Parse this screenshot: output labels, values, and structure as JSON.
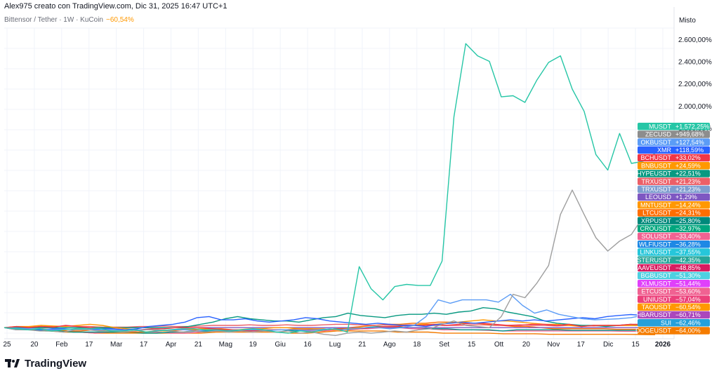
{
  "header": {
    "author_line": "Alex975 creato con TradingView.com, Dic 31, 2025 16:47 UTC+1",
    "symbol_line": "Bittensor / Tether · 1W · KuCoin",
    "symbol_change": "−60,54%"
  },
  "price_scale_mode": "Misto",
  "brand": "TradingView",
  "chart_data": {
    "type": "line",
    "title": "",
    "x_axis_labels": [
      "25",
      "20",
      "Feb",
      "17",
      "Mar",
      "17",
      "Apr",
      "21",
      "Mag",
      "19",
      "Giu",
      "16",
      "Lug",
      "21",
      "Ago",
      "18",
      "Set",
      "15",
      "Ott",
      "20",
      "Nov",
      "17",
      "Dic",
      "15",
      "2026"
    ],
    "x_range": [
      0,
      53
    ],
    "ylim": [
      -100,
      2700
    ],
    "y_ticks": [
      {
        "value": 2600,
        "label": "2.600,00%"
      },
      {
        "value": 2400,
        "label": "2.400,00%"
      },
      {
        "value": 2200,
        "label": "2.200,00%"
      },
      {
        "value": 2000,
        "label": "2.000,00%"
      },
      {
        "value": 1800,
        "label": "1.800,00%"
      }
    ],
    "grid": true,
    "series": [
      {
        "name": "MUSDT",
        "color": "#26c6a6",
        "last": "+1.572,25%",
        "values": [
          0,
          -10,
          -20,
          -10,
          -30,
          -20,
          -10,
          -10,
          -5,
          -30,
          -30,
          -20,
          -40,
          -30,
          -20,
          -10,
          -10,
          -20,
          -20,
          -30,
          -20,
          -10,
          -20,
          -40,
          -50,
          -30,
          -40,
          -20,
          -10,
          -40,
          550,
          350,
          250,
          370,
          390,
          380,
          380,
          600,
          1900,
          2560,
          2450,
          2400,
          2080,
          2090,
          2030,
          2230,
          2390,
          2450,
          2150,
          1950,
          1560,
          1420,
          1750,
          1480,
          1500,
          1572
        ]
      },
      {
        "name": "ZECUSD",
        "color": "#9e9e9e",
        "last": "+949,68%",
        "values": [
          0,
          -20,
          -20,
          -30,
          -30,
          -40,
          -20,
          -20,
          -30,
          -30,
          -40,
          -30,
          -20,
          -20,
          -30,
          -40,
          -30,
          -40,
          -30,
          -40,
          -30,
          -40,
          -30,
          -40,
          -30,
          -50,
          -40,
          -60,
          -70,
          -50,
          -40,
          -50,
          -40,
          -30,
          -40,
          -20,
          -10,
          30,
          60,
          20,
          10,
          0,
          100,
          300,
          270,
          400,
          560,
          1020,
          1240,
          1020,
          810,
          690,
          780,
          840,
          1000,
          950
        ]
      },
      {
        "name": "OKBUSDT",
        "color": "#5b9cf6",
        "last": "+127,54%",
        "values": [
          0,
          -5,
          -10,
          -10,
          -20,
          -15,
          -15,
          -20,
          -20,
          -20,
          -25,
          -20,
          -20,
          -25,
          -20,
          -20,
          -30,
          -20,
          -30,
          -25,
          -20,
          -20,
          -25,
          -20,
          -20,
          -25,
          -20,
          -10,
          -20,
          -10,
          0,
          0,
          -10,
          0,
          20,
          100,
          250,
          220,
          250,
          250,
          250,
          230,
          300,
          200,
          130,
          160,
          120,
          100,
          80,
          70,
          75,
          80,
          90,
          110,
          127
        ]
      },
      {
        "name": "XMR",
        "color": "#2962ff",
        "last": "+118,59%",
        "values": [
          0,
          -20,
          -10,
          -20,
          -10,
          -10,
          -20,
          -20,
          -10,
          -10,
          -20,
          -10,
          10,
          20,
          30,
          50,
          90,
          100,
          70,
          70,
          80,
          60,
          50,
          60,
          70,
          90,
          80,
          60,
          50,
          40,
          30,
          40,
          30,
          20,
          20,
          10,
          30,
          40,
          50,
          40,
          50,
          60,
          70,
          60,
          70,
          60,
          70,
          80,
          90,
          80,
          100,
          110,
          118,
          110,
          118
        ]
      },
      {
        "name": "BCHUSDT",
        "color": "#f23645",
        "last": "+33,02%",
        "values": [
          0,
          10,
          0,
          10,
          5,
          20,
          10,
          0,
          -10,
          -10,
          -20,
          -20,
          -10,
          -10,
          0,
          0,
          0,
          -10,
          -20,
          -20,
          -30,
          -20,
          -20,
          -20,
          -20,
          -20,
          -20,
          -10,
          -20,
          -10,
          0,
          10,
          10,
          20,
          20,
          30,
          20,
          30,
          40,
          40,
          30,
          20,
          20,
          30,
          30,
          20,
          30,
          10,
          20,
          20,
          20,
          30,
          30,
          33
        ]
      },
      {
        "name": "BNBUSDT",
        "color": "#ff9800",
        "last": "+24,59%",
        "values": [
          0,
          10,
          10,
          20,
          15,
          10,
          20,
          30,
          20,
          0,
          -10,
          -20,
          -20,
          -30,
          -20,
          -20,
          -10,
          -10,
          -20,
          -20,
          -10,
          -10,
          0,
          0,
          -10,
          -10,
          -10,
          -20,
          -10,
          0,
          0,
          10,
          10,
          20,
          30,
          30,
          40,
          50,
          60,
          70,
          60,
          60,
          50,
          40,
          30,
          30,
          20,
          10,
          20,
          20,
          20,
          20,
          20,
          24
        ]
      },
      {
        "name": "HYPEUSDT",
        "color": "#089981",
        "last": "+22,51%",
        "values": [
          0,
          0,
          0,
          0,
          0,
          0,
          0,
          0,
          0,
          0,
          0,
          0,
          0,
          0,
          0,
          10,
          30,
          50,
          80,
          100,
          80,
          70,
          60,
          60,
          50,
          70,
          90,
          100,
          130,
          110,
          100,
          90,
          110,
          120,
          120,
          130,
          120,
          140,
          150,
          180,
          170,
          140,
          120,
          100,
          60,
          40,
          30,
          20,
          20,
          10,
          20,
          30,
          20,
          22
        ]
      },
      {
        "name": "TRXUSDT",
        "color": "#ec5f67",
        "last": "+21,23%",
        "values": [
          0,
          5,
          5,
          10,
          10,
          15,
          10,
          10,
          5,
          5,
          5,
          10,
          10,
          15,
          10,
          10,
          15,
          20,
          20,
          20,
          25,
          20,
          20,
          25,
          20,
          20,
          25,
          30,
          30,
          25,
          20,
          25,
          20,
          25,
          20,
          20,
          20,
          20,
          25,
          25,
          20,
          20,
          25,
          20,
          20,
          15,
          20,
          20,
          15,
          20,
          20,
          20,
          20,
          21
        ]
      },
      {
        "name": "LEOUSD",
        "color": "#7e57c2",
        "last": "+1,29%",
        "values": [
          0,
          0,
          0,
          0,
          0,
          0,
          0,
          0,
          0,
          0,
          0,
          0,
          0,
          0,
          0,
          0,
          0,
          0,
          0,
          0,
          0,
          0,
          0,
          0,
          0,
          0,
          0,
          0,
          0,
          0,
          0,
          0,
          0,
          0,
          0,
          0,
          0,
          0,
          0,
          0,
          0,
          0,
          0,
          0,
          0,
          0,
          0,
          0,
          0,
          0,
          0,
          0,
          0,
          1
        ]
      },
      {
        "name": "MNTUSDT",
        "color": "#ff6d00",
        "last": "−14,24%",
        "values": [
          0,
          -10,
          -20,
          -10,
          -20,
          -30,
          -30,
          -20,
          -30,
          -30,
          -40,
          -40,
          -30,
          -30,
          -20,
          -20,
          -10,
          -10,
          -20,
          -20,
          -30,
          -20,
          -20,
          -10,
          -10,
          -20,
          -10,
          0,
          10,
          20,
          30,
          30,
          40,
          40,
          50,
          50,
          40,
          40,
          30,
          20,
          10,
          10,
          0,
          -10,
          -10,
          -10,
          -10,
          -10,
          -15,
          -15,
          -15,
          -14
        ]
      },
      {
        "name": "XRPUSDT",
        "color": "#009688",
        "last": "−25,80%",
        "values": [
          0,
          -10,
          -20,
          -30,
          -30,
          -40,
          -40,
          -40,
          -40,
          -40,
          -50,
          -50,
          -40,
          -40,
          -30,
          -30,
          -30,
          -30,
          -20,
          -20,
          -20,
          -30,
          -20,
          -20,
          -10,
          -10,
          0,
          10,
          10,
          0,
          0,
          -10,
          -10,
          -20,
          -20,
          -20,
          -30,
          -20,
          -20,
          -20,
          -20,
          -25,
          -25,
          -25,
          -25,
          -25,
          -25,
          -26
        ]
      },
      {
        "name": "SOLUSDT",
        "color": "#f06292",
        "last": "−33,40%",
        "values": [
          0,
          -10,
          -20,
          -20,
          -30,
          -40,
          -50,
          -40,
          -40,
          -40,
          -40,
          -50,
          -50,
          -40,
          -30,
          -30,
          -30,
          -30,
          -20,
          -20,
          -30,
          -30,
          -20,
          -10,
          -10,
          0,
          0,
          -10,
          -10,
          -20,
          -20,
          -20,
          -25,
          -30,
          -30,
          -30,
          -30,
          -30,
          -30,
          -30,
          -30,
          -33,
          -33,
          -33
        ]
      },
      {
        "name": "DOGEUSDT",
        "color": "#f57c00",
        "last": "−64,00%",
        "values": [
          0,
          -10,
          -20,
          -30,
          -40,
          -40,
          -50,
          -50,
          -50,
          -50,
          -50,
          -50,
          -50,
          -50,
          -40,
          -40,
          -40,
          -40,
          -40,
          -50,
          -50,
          -40,
          -30,
          -30,
          -30,
          -30,
          -40,
          -40,
          -40,
          -50,
          -50,
          -50,
          -50,
          -55,
          -55,
          -55,
          -60,
          -60,
          -60,
          -60,
          -60,
          -60,
          -62,
          -64
        ]
      }
    ],
    "legend_position": "right-price-scale",
    "badges": [
      {
        "label": "MUSDT",
        "value": "+1.572,25%",
        "color": "#26c6a6"
      },
      {
        "label": "ZECUSD",
        "value": "+949,68%",
        "color": "#8d8d8d"
      },
      {
        "label": "OKBUSDT",
        "value": "+127,54%",
        "color": "#5b9cf6"
      },
      {
        "label": "XMR",
        "value": "+118,59%",
        "color": "#2962ff"
      },
      {
        "label": "BCHUSDT",
        "value": "+33,02%",
        "color": "#f23645"
      },
      {
        "label": "BNBUSDT",
        "value": "+24,59%",
        "color": "#ff9800"
      },
      {
        "label": "HYPEUSDT",
        "value": "+22,51%",
        "color": "#089981"
      },
      {
        "label": "TRXUSDT",
        "value": "+21,23%",
        "color": "#ec5f67"
      },
      {
        "label": "TRXUSDT",
        "value": "+21,23%",
        "color": "#7e9dcf"
      },
      {
        "label": "LEOUSD",
        "value": "+1,29%",
        "color": "#7e57c2"
      },
      {
        "label": "MNTUSDT",
        "value": "−14,24%",
        "color": "#ff9800"
      },
      {
        "label": "LTCUSDT",
        "value": "−24,31%",
        "color": "#ff6d00"
      },
      {
        "label": "XRPUSDT",
        "value": "−25,80%",
        "color": "#00897b"
      },
      {
        "label": "CROUSDT",
        "value": "−32,97%",
        "color": "#00a67e"
      },
      {
        "label": "SOLUSDT",
        "value": "−33,40%",
        "color": "#f06292"
      },
      {
        "label": "WLFIUSDT",
        "value": "−36,28%",
        "color": "#1e88e5"
      },
      {
        "label": "LINKUSDT",
        "value": "−37,55%",
        "color": "#26c6da"
      },
      {
        "label": "ASTERUSDT",
        "value": "−42,35%",
        "color": "#26a69a"
      },
      {
        "label": "AAVEUSDT",
        "value": "−48,85%",
        "color": "#d81b60"
      },
      {
        "label": "BGBUSDT",
        "value": "−51,30%",
        "color": "#4dd0e1"
      },
      {
        "label": "XLMUSDT",
        "value": "−51,44%",
        "color": "#e040fb"
      },
      {
        "label": "ETCUSDT",
        "value": "−53,60%",
        "color": "#f06292"
      },
      {
        "label": "UNIUSDT",
        "value": "−57,04%",
        "color": "#ec407a"
      },
      {
        "label": "TAOUSDT",
        "value": "−60,54%",
        "color": "#ff9800"
      },
      {
        "label": "HBARUSDT",
        "value": "−60,71%",
        "color": "#ab47bc"
      },
      {
        "label": "SUI",
        "value": "−62,46%",
        "color": "#26a0da"
      },
      {
        "label": "DOGEUSDT",
        "value": "−64,00%",
        "color": "#f57c00"
      }
    ]
  }
}
